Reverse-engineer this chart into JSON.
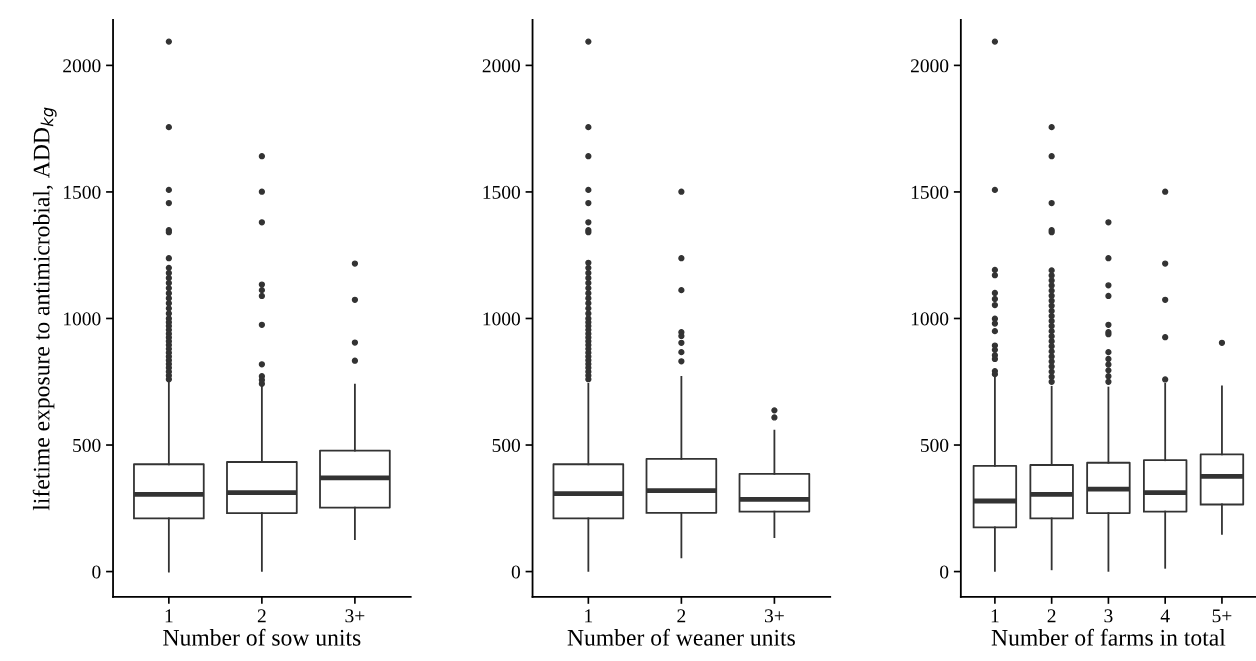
{
  "chart_data": [
    {
      "type": "box",
      "ylabel": "lifetime exposure to antimicrobial, ADD$_{kg}$",
      "xlabel": "Number of sow units",
      "categories": [
        "1",
        "2",
        "3+"
      ],
      "ylim": [
        -100,
        2180
      ],
      "yticks": [
        0,
        500,
        1000,
        1500,
        2000
      ],
      "grid": false,
      "color": "#333333",
      "boxes": [
        {
          "low": 0,
          "q1": 210,
          "median": 305,
          "q3": 424,
          "high": 750,
          "outliers": [
            2094,
            1756,
            1508,
            1456,
            1349,
            1341,
            1238,
            1200,
            1180,
            1160,
            1140,
            1120,
            1100,
            1080,
            1060,
            1040,
            1020,
            1000,
            985,
            970,
            955,
            940,
            925,
            910,
            895,
            880,
            865,
            850,
            835,
            820,
            805,
            790,
            775,
            760
          ]
        },
        {
          "low": 3,
          "q1": 231,
          "median": 312,
          "q3": 433,
          "high": 730,
          "outliers": [
            1641,
            1501,
            1380,
            1134,
            1112,
            1089,
            975,
            819,
            772,
            757,
            742
          ]
        },
        {
          "low": 128,
          "q1": 253,
          "median": 370,
          "q3": 478,
          "high": 739,
          "outliers": [
            1217,
            1074,
            905,
            833
          ]
        }
      ]
    },
    {
      "type": "box",
      "xlabel": "Number of weaner units",
      "categories": [
        "1",
        "2",
        "3+"
      ],
      "ylim": [
        -100,
        2180
      ],
      "yticks": [
        0,
        500,
        1000,
        1500,
        2000
      ],
      "grid": false,
      "color": "#333333",
      "boxes": [
        {
          "low": 3,
          "q1": 210,
          "median": 308,
          "q3": 424,
          "high": 742,
          "outliers": [
            2094,
            1756,
            1641,
            1508,
            1456,
            1380,
            1349,
            1341,
            1220,
            1200,
            1180,
            1160,
            1140,
            1120,
            1100,
            1080,
            1060,
            1040,
            1020,
            1000,
            985,
            970,
            955,
            940,
            925,
            910,
            895,
            880,
            865,
            850,
            835,
            820,
            805,
            790,
            775,
            760
          ]
        },
        {
          "low": 56,
          "q1": 232,
          "median": 320,
          "q3": 445,
          "high": 769,
          "outliers": [
            1501,
            1238,
            1112,
            946,
            931,
            904,
            867,
            831
          ]
        },
        {
          "low": 136,
          "q1": 237,
          "median": 285,
          "q3": 386,
          "high": 557,
          "outliers": [
            637,
            609
          ]
        }
      ]
    },
    {
      "type": "box",
      "xlabel": "Number of farms in total",
      "categories": [
        "1",
        "2",
        "3",
        "4",
        "5+"
      ],
      "ylim": [
        -100,
        2180
      ],
      "yticks": [
        0,
        500,
        1000,
        1500,
        2000
      ],
      "grid": false,
      "color": "#333333",
      "boxes": [
        {
          "low": 3,
          "q1": 175,
          "median": 279,
          "q3": 418,
          "high": 765,
          "outliers": [
            2094,
            1508,
            1192,
            1171,
            1101,
            1077,
            1053,
            999,
            980,
            950,
            893,
            876,
            855,
            840,
            792,
            780
          ]
        },
        {
          "low": 9,
          "q1": 210,
          "median": 305,
          "q3": 421,
          "high": 730,
          "outliers": [
            1756,
            1641,
            1456,
            1349,
            1341,
            1190,
            1170,
            1150,
            1130,
            1110,
            1090,
            1070,
            1050,
            1030,
            1010,
            990,
            970,
            950,
            930,
            910,
            890,
            870,
            850,
            830,
            810,
            790,
            770,
            750
          ]
        },
        {
          "low": 3,
          "q1": 231,
          "median": 326,
          "q3": 430,
          "high": 727,
          "outliers": [
            1380,
            1238,
            1131,
            1089,
            975,
            946,
            938,
            867,
            840,
            818,
            795,
            772,
            750
          ]
        },
        {
          "low": 15,
          "q1": 237,
          "median": 312,
          "q3": 440,
          "high": 742,
          "outliers": [
            1501,
            1217,
            1074,
            926,
            759
          ]
        },
        {
          "low": 149,
          "q1": 265,
          "median": 376,
          "q3": 463,
          "high": 732,
          "outliers": [
            904
          ]
        }
      ]
    }
  ]
}
